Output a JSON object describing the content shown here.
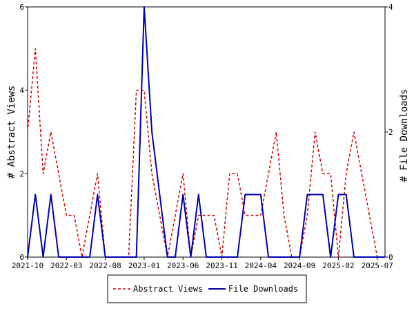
{
  "chart_data": {
    "type": "line",
    "x_unit": "month",
    "x_tick_labels": [
      "2021-10",
      "2022-03",
      "2022-08",
      "2023-01",
      "2023-06",
      "2023-11",
      "2024-04",
      "2024-09",
      "2025-02",
      "2025-07"
    ],
    "left_axis": {
      "label": "# Abstract Views",
      "ylim": [
        0,
        6
      ],
      "ticks": [
        "0",
        "2",
        "4",
        "6"
      ]
    },
    "right_axis": {
      "label": "# File Downloads",
      "ylim": [
        0,
        4
      ],
      "ticks": [
        "0",
        "2",
        "4"
      ]
    },
    "series": [
      {
        "name": "Abstract Views",
        "axis": "left",
        "color": "#cc0000",
        "style": "dashed",
        "x": [
          "2021-10",
          "2021-11",
          "2021-12",
          "2022-01",
          "2022-02",
          "2022-03",
          "2022-04",
          "2022-05",
          "2022-06",
          "2022-07",
          "2022-08",
          "2022-09",
          "2022-10",
          "2022-11",
          "2022-12",
          "2023-01",
          "2023-02",
          "2023-03",
          "2023-04",
          "2023-05",
          "2023-06",
          "2023-07",
          "2023-08",
          "2023-09",
          "2023-10",
          "2023-11",
          "2023-12",
          "2024-01",
          "2024-02",
          "2024-03",
          "2024-04",
          "2024-05",
          "2024-06",
          "2024-07",
          "2024-08",
          "2024-09",
          "2024-10",
          "2024-11",
          "2024-12",
          "2025-01",
          "2025-02",
          "2025-03",
          "2025-04",
          "2025-05",
          "2025-06",
          "2025-07",
          "2025-08"
        ],
        "values": [
          3,
          5,
          2,
          3,
          2,
          1,
          1,
          0,
          1,
          2,
          0,
          0,
          0,
          0,
          4,
          4,
          2,
          1,
          0,
          1,
          2,
          0,
          1,
          1,
          1,
          0,
          2,
          2,
          1,
          1,
          1,
          2,
          3,
          1,
          0,
          0,
          1,
          3,
          2,
          2,
          0,
          2,
          3,
          2,
          1,
          0,
          0
        ]
      },
      {
        "name": "File Downloads",
        "axis": "right",
        "color": "#0000aa",
        "style": "solid",
        "x": [
          "2021-10",
          "2021-11",
          "2021-12",
          "2022-01",
          "2022-02",
          "2022-03",
          "2022-04",
          "2022-05",
          "2022-06",
          "2022-07",
          "2022-08",
          "2022-09",
          "2022-10",
          "2022-11",
          "2022-12",
          "2023-01",
          "2023-02",
          "2023-03",
          "2023-04",
          "2023-05",
          "2023-06",
          "2023-07",
          "2023-08",
          "2023-09",
          "2023-10",
          "2023-11",
          "2023-12",
          "2024-01",
          "2024-02",
          "2024-03",
          "2024-04",
          "2024-05",
          "2024-06",
          "2024-07",
          "2024-08",
          "2024-09",
          "2024-10",
          "2024-11",
          "2024-12",
          "2025-01",
          "2025-02",
          "2025-03",
          "2025-04",
          "2025-05",
          "2025-06",
          "2025-07",
          "2025-08"
        ],
        "values": [
          0,
          1,
          0,
          1,
          0,
          0,
          0,
          0,
          0,
          1,
          0,
          0,
          0,
          0,
          0,
          4,
          2,
          1,
          0,
          0,
          1,
          0,
          1,
          0,
          0,
          0,
          0,
          0,
          1,
          1,
          1,
          0,
          0,
          0,
          0,
          0,
          1,
          1,
          1,
          0,
          1,
          1,
          0,
          0,
          0,
          0,
          0
        ]
      }
    ],
    "legend": {
      "position": "bottom-center"
    },
    "grid": false
  }
}
